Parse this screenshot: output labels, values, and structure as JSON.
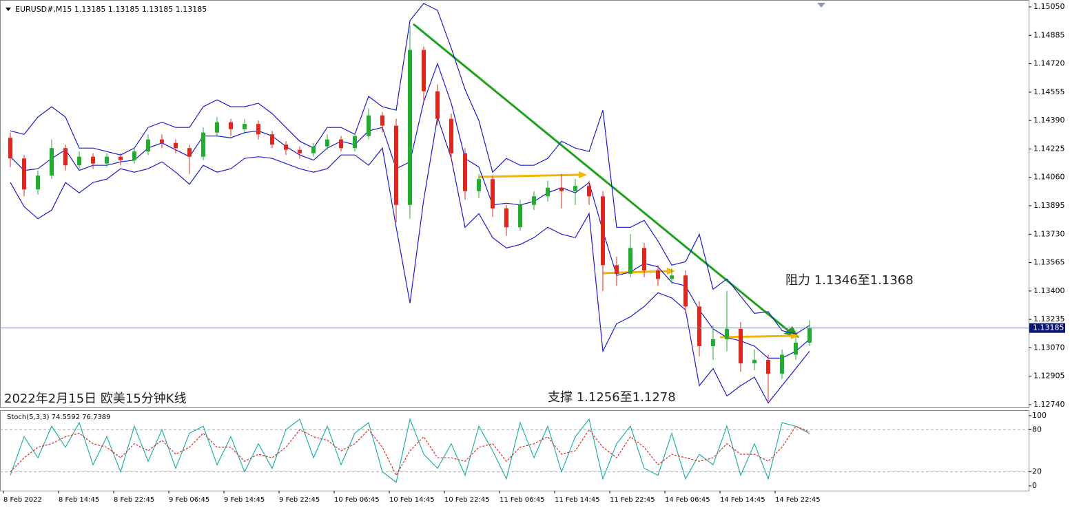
{
  "chart_data": [
    {
      "type": "candlestick",
      "title": "EURUSD#,M15  1.13185 1.13185 1.13185 1.13185",
      "annotations": [
        "2022年2月15日 欧美15分钟K线",
        "支撑 1.1256至1.1278",
        "阻力 1.1346至1.1368"
      ],
      "up_color": "#1fae2e",
      "down_color": "#e3261c",
      "open": [
        1.1429,
        1.1417,
        1.1399,
        1.1407,
        1.1423,
        1.1413,
        1.1418,
        1.1414,
        1.1418,
        1.1416,
        1.1421,
        1.1428,
        1.1426,
        1.1423,
        1.1418,
        1.1432,
        1.1438,
        1.1434,
        1.1437,
        1.1431,
        1.1425,
        1.1422,
        1.142,
        1.1424,
        1.1428,
        1.1423,
        1.143,
        1.1442,
        1.1436,
        1.139,
        1.148,
        1.1456,
        1.144,
        1.142,
        1.1398,
        1.1405,
        1.1388,
        1.1377,
        1.139,
        1.1395,
        1.14,
        1.1398,
        1.1401,
        1.1395,
        1.1355,
        1.135,
        1.1365,
        1.1352,
        1.1347,
        1.1349,
        1.1331,
        1.1308,
        1.1312,
        1.1318,
        1.1298,
        1.13,
        1.1292,
        1.1303,
        1.131
      ],
      "high": [
        1.1432,
        1.1419,
        1.141,
        1.1428,
        1.1425,
        1.1421,
        1.142,
        1.142,
        1.142,
        1.1423,
        1.1431,
        1.1431,
        1.1428,
        1.1425,
        1.1435,
        1.1441,
        1.144,
        1.144,
        1.1439,
        1.1433,
        1.1427,
        1.1424,
        1.1426,
        1.1431,
        1.143,
        1.1432,
        1.1446,
        1.1444,
        1.144,
        1.1494,
        1.1482,
        1.146,
        1.1443,
        1.1423,
        1.1408,
        1.1407,
        1.139,
        1.1393,
        1.1398,
        1.1404,
        1.1408,
        1.1405,
        1.1404,
        1.1398,
        1.136,
        1.1373,
        1.1368,
        1.1355,
        1.1353,
        1.1352,
        1.1334,
        1.132,
        1.134,
        1.1322,
        1.1306,
        1.1303,
        1.1306,
        1.1313,
        1.1323
      ],
      "low": [
        1.1412,
        1.1395,
        1.1396,
        1.1405,
        1.141,
        1.141,
        1.1411,
        1.1412,
        1.1413,
        1.1414,
        1.1419,
        1.1423,
        1.142,
        1.1408,
        1.1416,
        1.143,
        1.143,
        1.1431,
        1.1428,
        1.1423,
        1.1419,
        1.1417,
        1.1418,
        1.1422,
        1.1421,
        1.1421,
        1.1428,
        1.1432,
        1.138,
        1.1382,
        1.145,
        1.1436,
        1.1416,
        1.1393,
        1.1394,
        1.1383,
        1.1372,
        1.1375,
        1.1387,
        1.1392,
        1.1388,
        1.139,
        1.139,
        1.134,
        1.1343,
        1.1348,
        1.1348,
        1.1343,
        1.1344,
        1.1327,
        1.1302,
        1.13,
        1.1305,
        1.1293,
        1.1294,
        1.1276,
        1.1289,
        1.13,
        1.1308
      ],
      "close": [
        1.1417,
        1.1399,
        1.1407,
        1.1423,
        1.1413,
        1.1418,
        1.1414,
        1.1418,
        1.1416,
        1.1421,
        1.1428,
        1.1426,
        1.1423,
        1.1418,
        1.1432,
        1.1438,
        1.1434,
        1.1437,
        1.1431,
        1.1425,
        1.1422,
        1.142,
        1.1424,
        1.1428,
        1.1423,
        1.143,
        1.1442,
        1.1436,
        1.139,
        1.148,
        1.1456,
        1.144,
        1.142,
        1.1398,
        1.1405,
        1.1388,
        1.1377,
        1.139,
        1.1395,
        1.14,
        1.1398,
        1.1401,
        1.1395,
        1.1355,
        1.135,
        1.1365,
        1.1352,
        1.1347,
        1.1349,
        1.1331,
        1.1308,
        1.1312,
        1.1318,
        1.1298,
        1.13,
        1.1292,
        1.1303,
        1.131,
        1.13185
      ],
      "bands": {
        "color": "#1a1ad6",
        "upper": [
          1.1433,
          1.1431,
          1.1441,
          1.1447,
          1.1441,
          1.1423,
          1.1423,
          1.1421,
          1.1419,
          1.1423,
          1.1435,
          1.1438,
          1.1435,
          1.1435,
          1.1447,
          1.1451,
          1.1447,
          1.1447,
          1.1449,
          1.1443,
          1.1435,
          1.1427,
          1.1423,
          1.1435,
          1.1435,
          1.1431,
          1.1453,
          1.1447,
          1.1445,
          1.1497,
          1.1507,
          1.1503,
          1.1481,
          1.1457,
          1.1439,
          1.1409,
          1.1417,
          1.1413,
          1.1413,
          1.1417,
          1.1427,
          1.1423,
          1.1421,
          1.1445,
          1.1377,
          1.1377,
          1.1381,
          1.1369,
          1.1355,
          1.1357,
          1.1373,
          1.1341,
          1.1347,
          1.1337,
          1.1327,
          1.1328,
          1.1317,
          1.1315,
          1.132
        ],
        "middle": [
          1.1418,
          1.141,
          1.1411,
          1.1417,
          1.1422,
          1.141,
          1.1413,
          1.1413,
          1.1415,
          1.1416,
          1.1423,
          1.1426,
          1.1422,
          1.1418,
          1.143,
          1.143,
          1.1429,
          1.1432,
          1.1433,
          1.143,
          1.1424,
          1.1419,
          1.1416,
          1.1423,
          1.1427,
          1.1425,
          1.1433,
          1.1435,
          1.1411,
          1.1415,
          1.145,
          1.1472,
          1.1449,
          1.1417,
          1.1412,
          1.139,
          1.1391,
          1.139,
          1.1392,
          1.1397,
          1.14,
          1.1397,
          1.1403,
          1.1375,
          1.1349,
          1.1351,
          1.1356,
          1.1354,
          1.1345,
          1.1343,
          1.1329,
          1.1318,
          1.1313,
          1.1311,
          1.1308,
          1.1301,
          1.1301,
          1.1305,
          1.1312
        ],
        "lower": [
          1.1403,
          1.1389,
          1.1382,
          1.1387,
          1.1403,
          1.1397,
          1.1403,
          1.1405,
          1.1411,
          1.1409,
          1.1411,
          1.1415,
          1.1409,
          1.1402,
          1.1413,
          1.1409,
          1.1411,
          1.1417,
          1.1418,
          1.1417,
          1.1414,
          1.1411,
          1.1409,
          1.1411,
          1.1419,
          1.1419,
          1.1413,
          1.1423,
          1.1377,
          1.1333,
          1.1393,
          1.1441,
          1.1417,
          1.1377,
          1.1385,
          1.1371,
          1.1365,
          1.1367,
          1.1371,
          1.1377,
          1.1373,
          1.1371,
          1.1385,
          1.1305,
          1.1321,
          1.1325,
          1.1331,
          1.1339,
          1.1336,
          1.1329,
          1.1285,
          1.1295,
          1.1279,
          1.1285,
          1.129,
          1.1275,
          1.1285,
          1.1295,
          1.1305
        ]
      },
      "current_price": {
        "value": 1.13185,
        "label": "1.13185"
      },
      "xlim": [
        0,
        74.4
      ],
      "ylim": [
        1.12724,
        1.15078
      ],
      "yticks": [
        {
          "value": 1.1505,
          "label": "1.15050"
        },
        {
          "value": 1.14885,
          "label": "1.14885"
        },
        {
          "value": 1.1472,
          "label": "1.14720"
        },
        {
          "value": 1.14555,
          "label": "1.14555"
        },
        {
          "value": 1.1439,
          "label": "1.14390"
        },
        {
          "value": 1.14225,
          "label": "1.14225"
        },
        {
          "value": 1.1406,
          "label": "1.14060"
        },
        {
          "value": 1.13895,
          "label": "1.13895"
        },
        {
          "value": 1.1373,
          "label": "1.13730"
        },
        {
          "value": 1.13565,
          "label": "1.13565"
        },
        {
          "value": 1.134,
          "label": "1.13400"
        },
        {
          "value": 1.13235,
          "label": "1.13235"
        },
        {
          "value": 1.1307,
          "label": "1.13070"
        },
        {
          "value": 1.12905,
          "label": "1.12905"
        },
        {
          "value": 1.1274,
          "label": "1.12740"
        }
      ]
    },
    {
      "type": "line",
      "title": "Stoch(5,3,3) 74.5592 76.7389",
      "series": [
        {
          "color": "#20b2aa",
          "dash": false,
          "values": [
            15,
            70,
            40,
            85,
            55,
            90,
            30,
            70,
            20,
            85,
            35,
            80,
            25,
            75,
            85,
            30,
            70,
            20,
            60,
            25,
            80,
            95,
            40,
            85,
            30,
            75,
            90,
            20,
            5,
            95,
            45,
            25,
            60,
            15,
            85,
            50,
            10,
            90,
            40,
            85,
            20,
            70,
            95,
            10,
            60,
            85,
            25,
            15,
            75,
            10,
            45,
            30,
            85,
            15,
            60,
            10,
            90,
            85,
            74.5592
          ]
        },
        {
          "color": "#e3261c",
          "dash": true,
          "values": [
            20,
            40,
            55,
            60,
            70,
            75,
            60,
            55,
            40,
            60,
            50,
            65,
            45,
            55,
            75,
            55,
            55,
            35,
            45,
            40,
            55,
            80,
            70,
            65,
            50,
            60,
            80,
            55,
            15,
            50,
            70,
            40,
            40,
            35,
            55,
            60,
            35,
            55,
            60,
            70,
            45,
            50,
            80,
            55,
            40,
            70,
            55,
            30,
            45,
            40,
            35,
            40,
            60,
            45,
            45,
            35,
            55,
            85,
            76.7389
          ]
        }
      ],
      "levels": [
        80,
        20
      ],
      "xlim": [
        0,
        74.4
      ],
      "xticks": [
        {
          "value": 0,
          "label": "8 Feb 2022"
        },
        {
          "value": 4,
          "label": "8 Feb 14:45"
        },
        {
          "value": 8,
          "label": "8 Feb 22:45"
        },
        {
          "value": 12,
          "label": "9 Feb 06:45"
        },
        {
          "value": 16,
          "label": "9 Feb 14:45"
        },
        {
          "value": 20,
          "label": "9 Feb 22:45"
        },
        {
          "value": 24,
          "label": "10 Feb 06:45"
        },
        {
          "value": 28,
          "label": "10 Feb 14:45"
        },
        {
          "value": 32,
          "label": "10 Feb 22:45"
        },
        {
          "value": 36,
          "label": "11 Feb 06:45"
        },
        {
          "value": 40,
          "label": "11 Feb 14:45"
        },
        {
          "value": 44,
          "label": "11 Feb 22:45"
        },
        {
          "value": 48,
          "label": "14 Feb 06:45"
        },
        {
          "value": 52,
          "label": "14 Feb 14:45"
        },
        {
          "value": 56,
          "label": "14 Feb 22:45"
        }
      ],
      "ylim": [
        -6.9,
        106.9
      ],
      "yticks": [
        100,
        80,
        20,
        0
      ]
    }
  ]
}
